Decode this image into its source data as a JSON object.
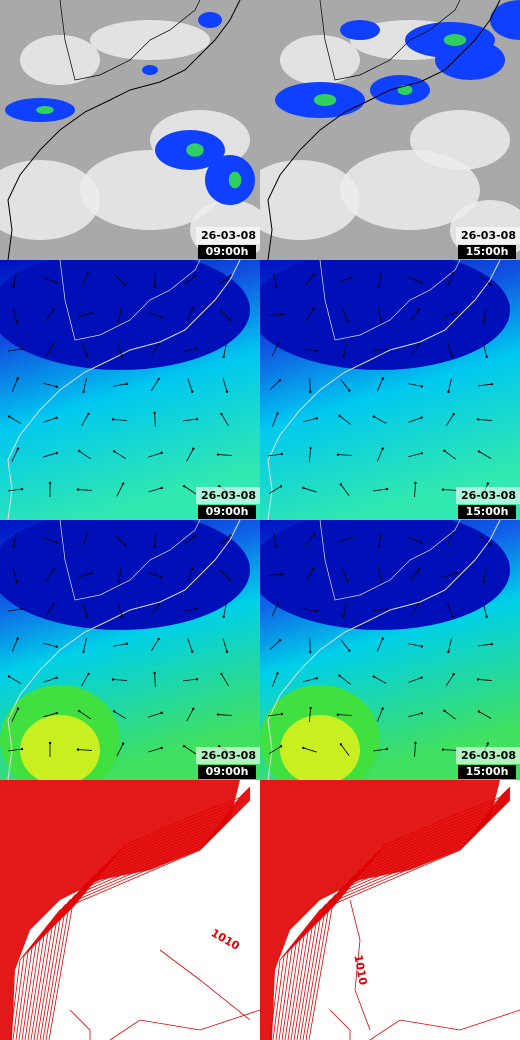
{
  "panels": [
    [
      {
        "date": "26-03-08",
        "time": "09:00h"
      },
      {
        "date": "26-03-08",
        "time": "15:00h"
      }
    ],
    [
      {
        "date": "26-03-08",
        "time": "09:00h"
      },
      {
        "date": "26-03-08",
        "time": "15:00h"
      }
    ],
    [
      {
        "date": "26-03-08",
        "time": "09:00h"
      },
      {
        "date": "26-03-08",
        "time": "15:00h"
      }
    ]
  ],
  "isobar_labels": [
    "1010",
    "1010"
  ]
}
